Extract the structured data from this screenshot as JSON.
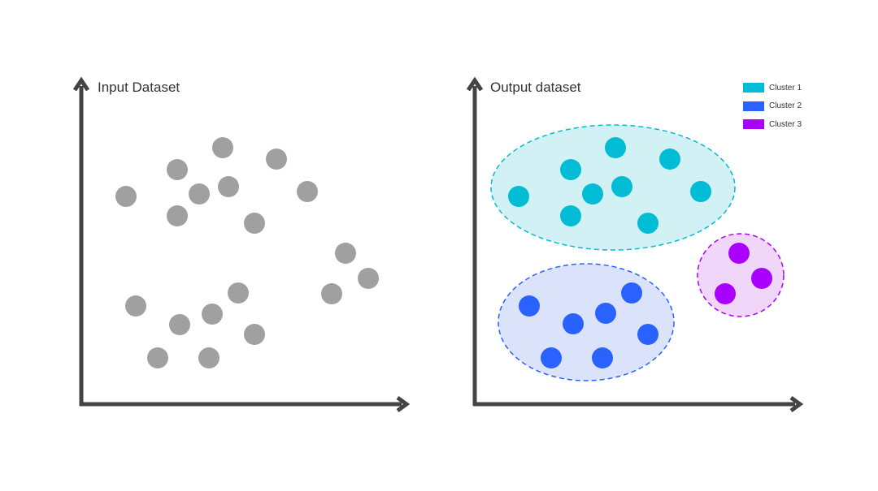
{
  "input_panel": {
    "title": "Input Dataset"
  },
  "output_panel": {
    "title": "Output dataset"
  },
  "legend": {
    "items": [
      {
        "label": "Cluster 1",
        "color": "#00bcd4"
      },
      {
        "label": "Cluster 2",
        "color": "#2962ff"
      },
      {
        "label": "Cluster 3",
        "color": "#aa00ff"
      }
    ]
  },
  "colors": {
    "axis": "#444444",
    "input_point": "#a0a0a0",
    "cluster_1_fill": "#d2f1f5",
    "cluster_2_fill": "#dbe3fb",
    "cluster_3_fill": "#f0d6f9"
  }
}
